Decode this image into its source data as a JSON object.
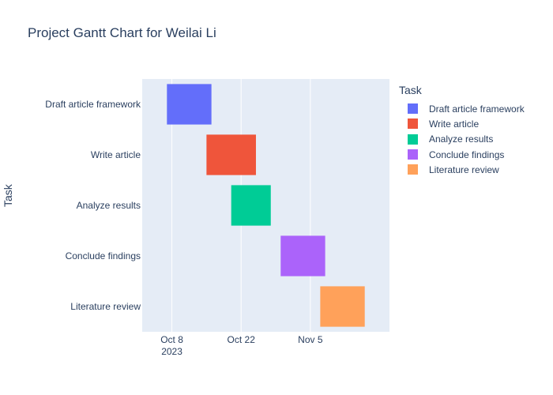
{
  "title": "Project Gantt Chart for Weilai Li",
  "chart_data": {
    "type": "bar",
    "orientation": "horizontal-gantt",
    "title": "Project Gantt Chart for Weilai Li",
    "ylabel": "Task",
    "xlabel": "",
    "x_axis": {
      "type": "date",
      "range": [
        "2023-10-02",
        "2023-11-21"
      ],
      "ticks": [
        {
          "date": "2023-10-08",
          "label": "Oct 8",
          "sublabel": "2023"
        },
        {
          "date": "2023-10-22",
          "label": "Oct 22",
          "sublabel": ""
        },
        {
          "date": "2023-11-05",
          "label": "Nov 5",
          "sublabel": ""
        }
      ]
    },
    "grid": true,
    "legend_position": "right",
    "legend_title": "Task",
    "tasks": [
      {
        "task": "Draft article framework",
        "start": "2023-10-07",
        "finish": "2023-10-16",
        "color": "#636efa"
      },
      {
        "task": "Write article",
        "start": "2023-10-15",
        "finish": "2023-10-25",
        "color": "#ef553b"
      },
      {
        "task": "Analyze results",
        "start": "2023-10-20",
        "finish": "2023-10-28",
        "color": "#00cc96"
      },
      {
        "task": "Conclude findings",
        "start": "2023-10-30",
        "finish": "2023-11-08",
        "color": "#ab63fa"
      },
      {
        "task": "Literature review",
        "start": "2023-11-07",
        "finish": "2023-11-16",
        "color": "#ffa15a"
      }
    ]
  },
  "colors": {
    "plot_bg": "#e5ecf6",
    "grid": "#ffffff",
    "text": "#2a3f5f"
  }
}
